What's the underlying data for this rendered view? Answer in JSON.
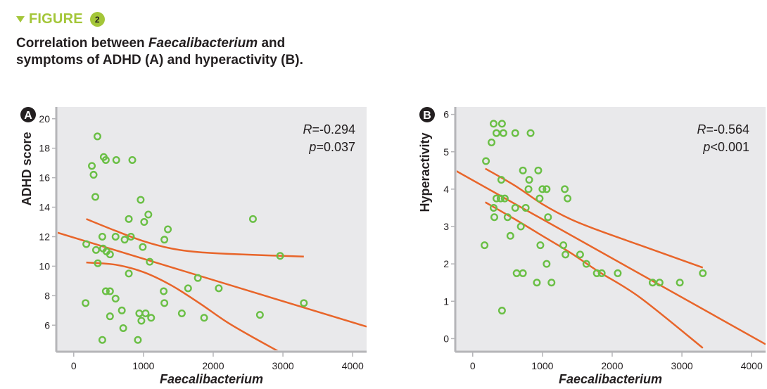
{
  "figure": {
    "label": "FIGURE",
    "number": "2",
    "caption_prefix": "Correlation between ",
    "caption_italic": "Faecalibacterium",
    "caption_suffix": " and symptoms of ADHD (A) and hyperactivity (B).",
    "accent_color": "#a4c639"
  },
  "colors": {
    "point": "#6abf45",
    "line": "#e8652a",
    "plot_bg": "#e9e9eb",
    "axis": "#b5b5b8"
  },
  "chart_data": [
    {
      "type": "scatter",
      "panel": "A",
      "title": "",
      "xlabel": "Faecalibacterium",
      "ylabel": "ADHD score",
      "xlim": [
        -250,
        4200
      ],
      "ylim": [
        4.2,
        20.8
      ],
      "xticks": [
        0,
        1000,
        2000,
        3000,
        4000
      ],
      "yticks": [
        6,
        8,
        10,
        12,
        14,
        16,
        18,
        20
      ],
      "annotation": {
        "R": "R=-0.294",
        "p": "p=0.037"
      },
      "legend": "none",
      "grid": false,
      "points": [
        [
          340,
          18.8
        ],
        [
          430,
          17.4
        ],
        [
          460,
          17.2
        ],
        [
          610,
          17.2
        ],
        [
          840,
          17.2
        ],
        [
          260,
          16.8
        ],
        [
          285,
          16.2
        ],
        [
          310,
          14.7
        ],
        [
          960,
          14.5
        ],
        [
          1070,
          13.5
        ],
        [
          790,
          13.2
        ],
        [
          1010,
          13.0
        ],
        [
          1350,
          12.5
        ],
        [
          2570,
          13.2
        ],
        [
          1300,
          11.8
        ],
        [
          410,
          12.0
        ],
        [
          600,
          12.0
        ],
        [
          730,
          11.8
        ],
        [
          820,
          12.0
        ],
        [
          990,
          11.3
        ],
        [
          180,
          11.5
        ],
        [
          320,
          11.1
        ],
        [
          420,
          11.2
        ],
        [
          470,
          11.0
        ],
        [
          520,
          10.8
        ],
        [
          345,
          10.2
        ],
        [
          1090,
          10.3
        ],
        [
          2960,
          10.7
        ],
        [
          790,
          9.5
        ],
        [
          1780,
          9.2
        ],
        [
          460,
          8.3
        ],
        [
          520,
          8.3
        ],
        [
          600,
          7.8
        ],
        [
          1290,
          8.3
        ],
        [
          1640,
          8.5
        ],
        [
          2080,
          8.5
        ],
        [
          170,
          7.5
        ],
        [
          1300,
          7.5
        ],
        [
          3300,
          7.5
        ],
        [
          690,
          7.0
        ],
        [
          520,
          6.6
        ],
        [
          940,
          6.8
        ],
        [
          1030,
          6.8
        ],
        [
          1110,
          6.5
        ],
        [
          970,
          6.3
        ],
        [
          1550,
          6.8
        ],
        [
          1870,
          6.5
        ],
        [
          2670,
          6.7
        ],
        [
          710,
          5.8
        ],
        [
          410,
          5.0
        ],
        [
          920,
          5.0
        ]
      ],
      "fit": {
        "x": [
          -250,
          4200
        ],
        "y": [
          12.3,
          5.9
        ]
      },
      "ci_upper": {
        "x": [
          180,
          600,
          1000,
          1400,
          1800,
          2400,
          3300
        ],
        "y": [
          13.2,
          12.4,
          11.7,
          11.2,
          10.95,
          10.8,
          10.65
        ]
      },
      "ci_lower": {
        "x": [
          180,
          600,
          1000,
          1400,
          1800,
          2200,
          2600,
          3100
        ],
        "y": [
          10.25,
          10.1,
          9.6,
          8.7,
          7.5,
          6.2,
          5.1,
          3.8
        ]
      }
    },
    {
      "type": "scatter",
      "panel": "B",
      "title": "",
      "xlabel": "Faecalibacterium",
      "ylabel": "Hyperactivity",
      "xlim": [
        -250,
        4200
      ],
      "ylim": [
        -0.35,
        6.2
      ],
      "xticks": [
        0,
        1000,
        2000,
        3000,
        4000
      ],
      "yticks": [
        0,
        1,
        2,
        3,
        4,
        5,
        6
      ],
      "annotation": {
        "R": "R=-0.564",
        "p": "p<0.001"
      },
      "legend": "none",
      "grid": false,
      "points": [
        [
          300,
          5.75
        ],
        [
          420,
          5.75
        ],
        [
          340,
          5.5
        ],
        [
          440,
          5.5
        ],
        [
          610,
          5.5
        ],
        [
          830,
          5.5
        ],
        [
          270,
          5.25
        ],
        [
          190,
          4.75
        ],
        [
          720,
          4.5
        ],
        [
          940,
          4.5
        ],
        [
          410,
          4.25
        ],
        [
          810,
          4.25
        ],
        [
          800,
          4.0
        ],
        [
          1000,
          4.0
        ],
        [
          1060,
          4.0
        ],
        [
          1320,
          4.0
        ],
        [
          340,
          3.75
        ],
        [
          400,
          3.75
        ],
        [
          460,
          3.75
        ],
        [
          960,
          3.75
        ],
        [
          1360,
          3.75
        ],
        [
          300,
          3.5
        ],
        [
          610,
          3.5
        ],
        [
          760,
          3.5
        ],
        [
          310,
          3.25
        ],
        [
          500,
          3.25
        ],
        [
          1080,
          3.25
        ],
        [
          690,
          3.0
        ],
        [
          540,
          2.75
        ],
        [
          170,
          2.5
        ],
        [
          970,
          2.5
        ],
        [
          1300,
          2.5
        ],
        [
          1330,
          2.25
        ],
        [
          1540,
          2.25
        ],
        [
          1060,
          2.0
        ],
        [
          1630,
          2.0
        ],
        [
          630,
          1.75
        ],
        [
          720,
          1.75
        ],
        [
          1780,
          1.75
        ],
        [
          1850,
          1.75
        ],
        [
          2080,
          1.75
        ],
        [
          3300,
          1.75
        ],
        [
          920,
          1.5
        ],
        [
          1130,
          1.5
        ],
        [
          2580,
          1.5
        ],
        [
          2680,
          1.5
        ],
        [
          2970,
          1.5
        ],
        [
          420,
          0.75
        ]
      ],
      "fit": {
        "x": [
          -250,
          4200
        ],
        "y": [
          4.5,
          -0.15
        ]
      },
      "ci_upper": {
        "x": [
          180,
          600,
          1000,
          1400,
          1800,
          2400,
          3300
        ],
        "y": [
          4.55,
          4.1,
          3.6,
          3.2,
          2.9,
          2.5,
          1.9
        ]
      },
      "ci_lower": {
        "x": [
          180,
          600,
          1000,
          1400,
          1800,
          2400,
          3300
        ],
        "y": [
          3.65,
          3.2,
          2.75,
          2.3,
          1.8,
          1.1,
          -0.25
        ]
      }
    }
  ]
}
